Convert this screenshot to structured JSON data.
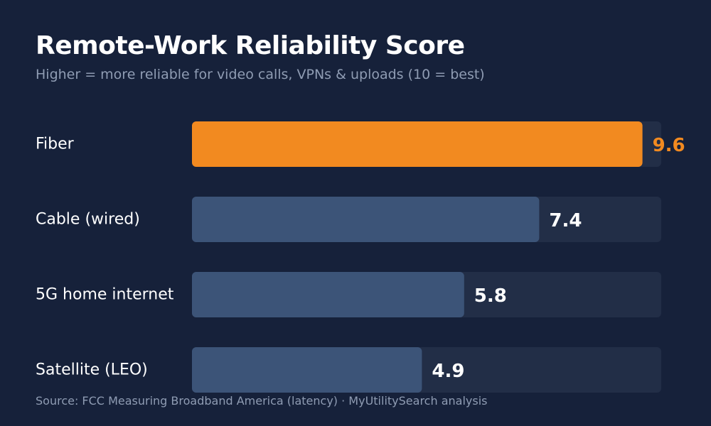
{
  "colors": {
    "background": "#16213a",
    "track": "#222e47",
    "bar_default": "#3c5478",
    "bar_highlight": "#f28a20",
    "label_default": "#ffffff",
    "label_highlight": "#f28a20",
    "muted_text": "#8f9cb3"
  },
  "source": "Source: FCC Measuring Broadband America (latency) · MyUtilitySearch analysis",
  "chart_data": {
    "type": "bar",
    "orientation": "horizontal",
    "title": "Remote-Work Reliability Score",
    "subtitle": "Higher = more reliable for video calls, VPNs & uploads (10 = best)",
    "categories": [
      "Fiber",
      "Cable (wired)",
      "5G home internet",
      "Satellite (LEO)"
    ],
    "values": [
      9.6,
      7.4,
      5.8,
      4.9
    ],
    "value_labels": [
      "9.6",
      "7.4",
      "5.8",
      "4.9"
    ],
    "highlight": "Fiber",
    "xlim": [
      0,
      10
    ],
    "grid": false,
    "legend": "none"
  }
}
